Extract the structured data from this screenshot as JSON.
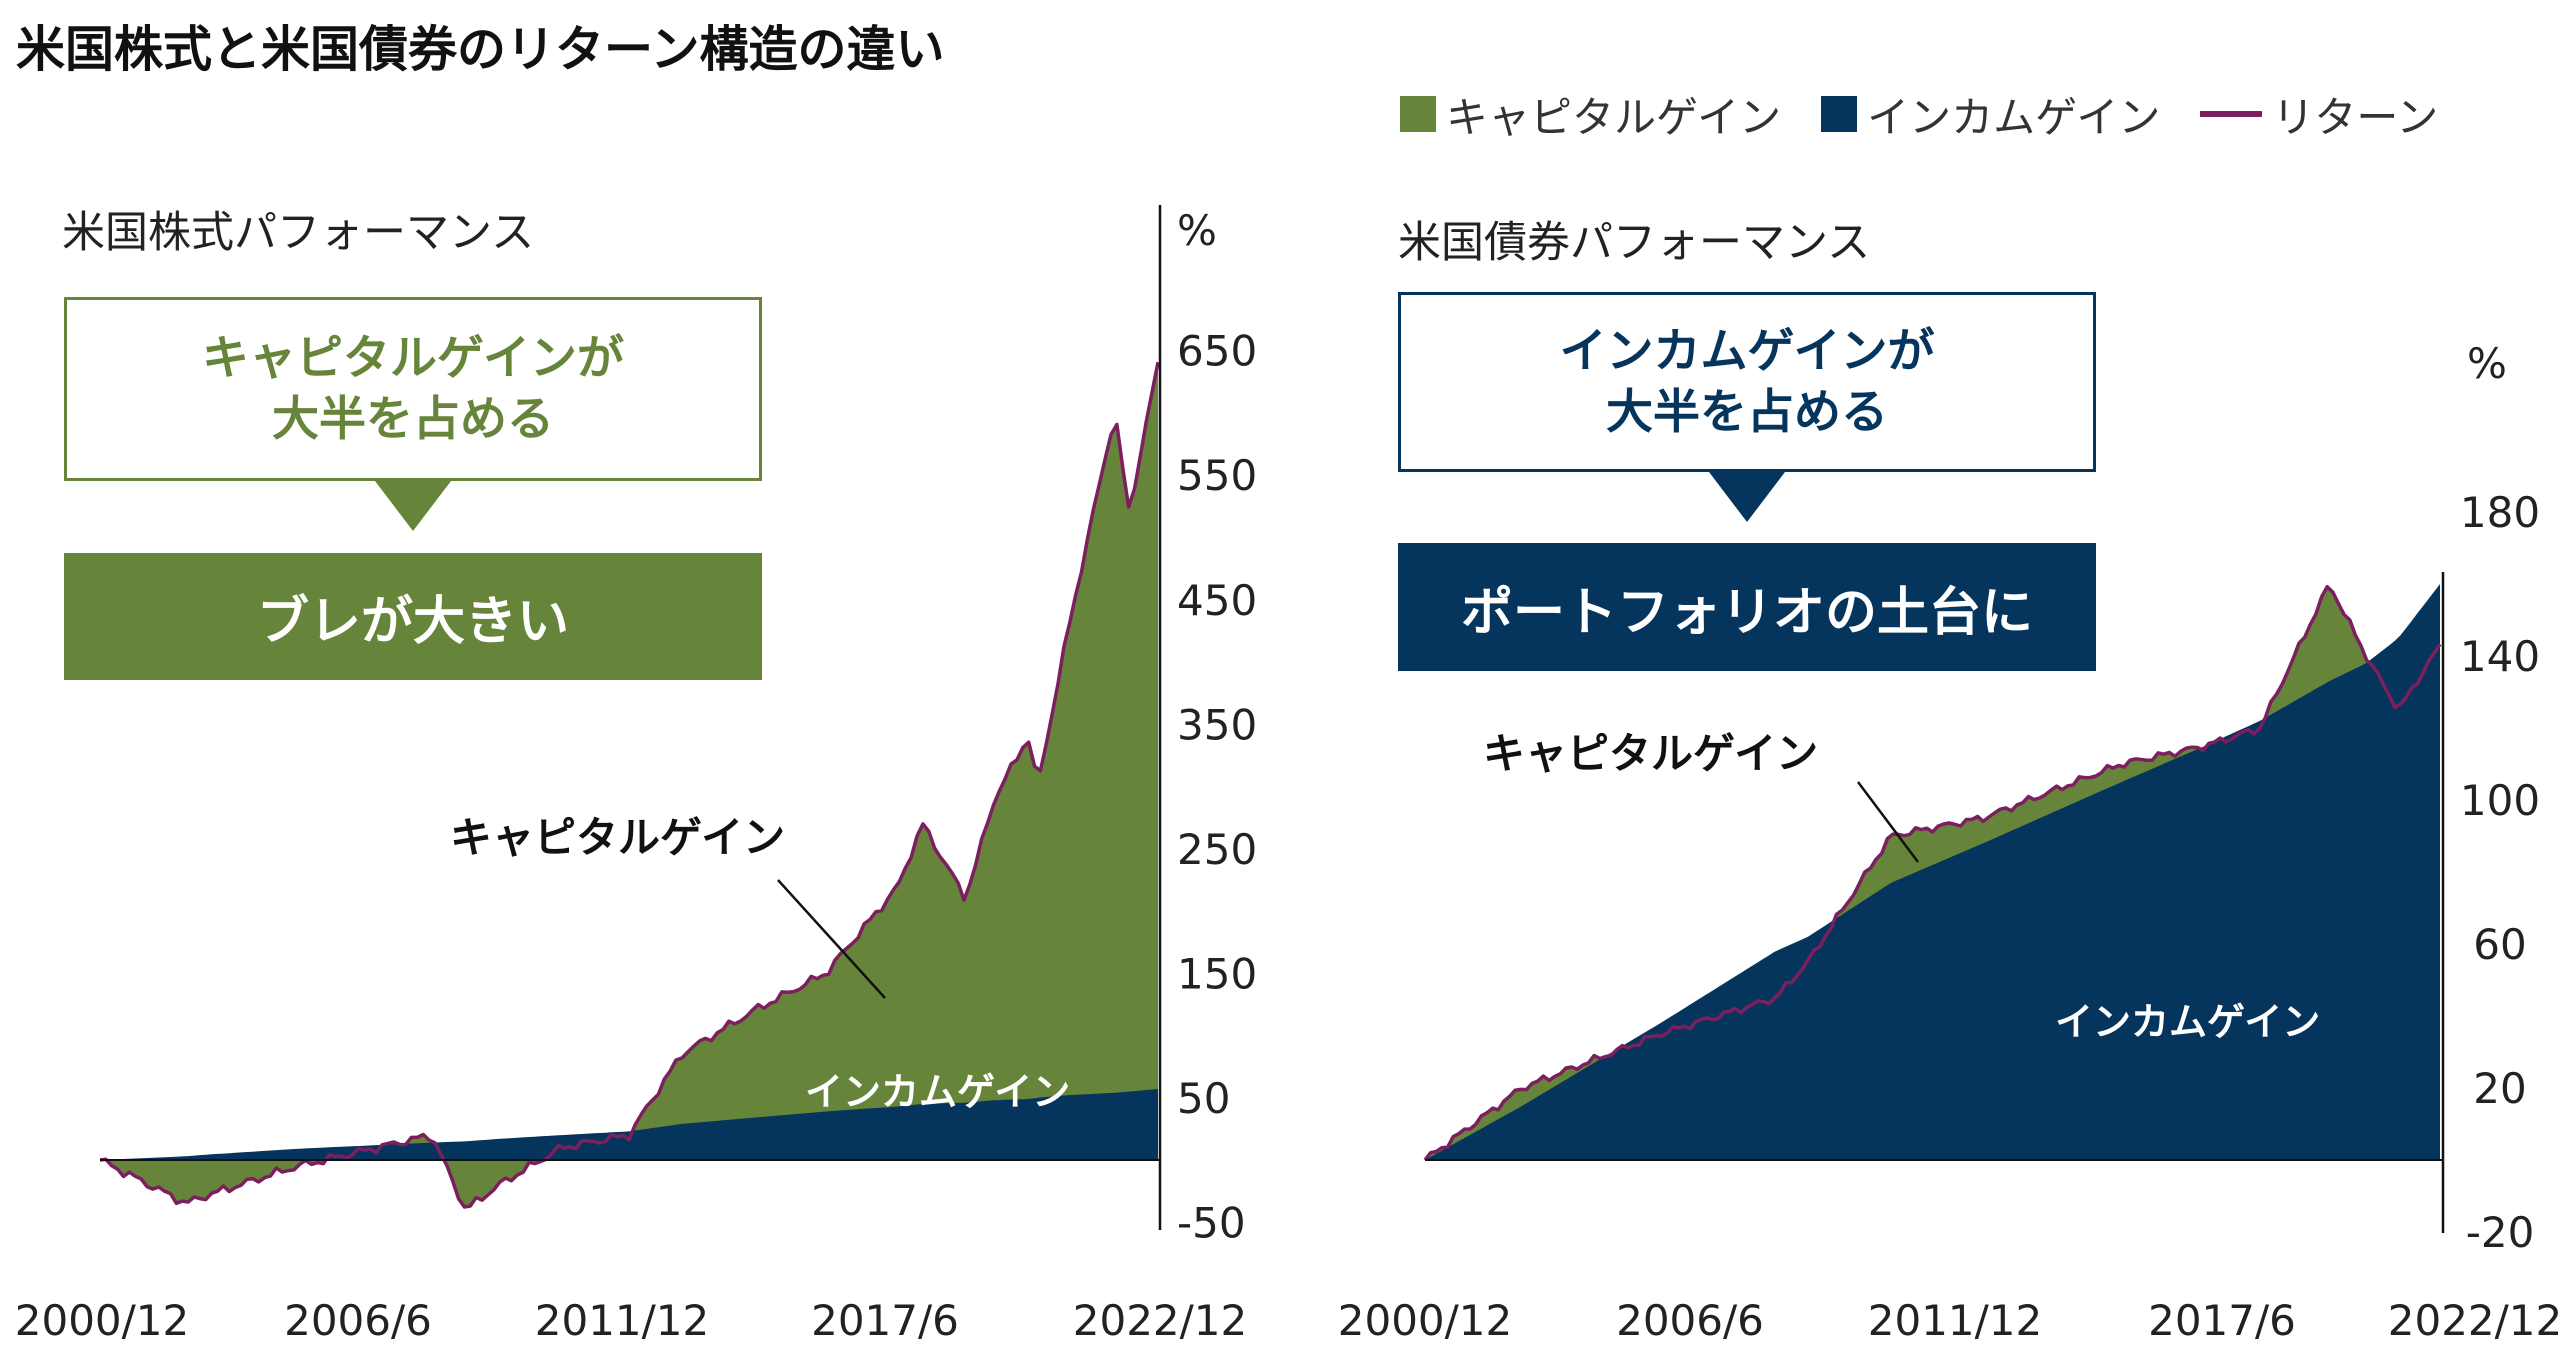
{
  "title": "米国株式と米国債券のリターン構造の違い",
  "legend": {
    "capital": "キャピタルゲイン",
    "income": "インカムゲイン",
    "ret": "リターン"
  },
  "colors": {
    "capital": "#66853a",
    "income": "#05355c",
    "return": "#7b1f5f"
  },
  "stocks": {
    "panel_title": "米国株式パフォーマンス",
    "callout_line1": "キャピタルゲインが",
    "callout_line2": "大半を占める",
    "banner": "ブレが大きい",
    "capital_label": "キャピタルゲイン",
    "income_label": "インカムゲイン"
  },
  "bonds": {
    "panel_title": "米国債券パフォーマンス",
    "callout_line1": "インカムゲインが",
    "callout_line2": "大半を占める",
    "banner": "ポートフォリオの土台に",
    "capital_label": "キャピタルゲイン",
    "income_label": "インカムゲイン"
  },
  "chart_data": [
    {
      "type": "area",
      "title": "米国株式パフォーマンス",
      "ylabel": "%",
      "ylim": [
        -50,
        700
      ],
      "yticks": [
        "650",
        "550",
        "450",
        "350",
        "250",
        "150",
        "50",
        "-50"
      ],
      "yticks_values": [
        650,
        550,
        450,
        350,
        250,
        150,
        50,
        -50
      ],
      "xticks": [
        "2000/12",
        "2006/6",
        "2011/12",
        "2017/6",
        "2022/12"
      ],
      "x": [
        2000.9,
        2002.7,
        2003.0,
        2005.0,
        2007.8,
        2008.5,
        2009.2,
        2010.5,
        2011.9,
        2013.0,
        2014.5,
        2016.0,
        2017.5,
        2018.0,
        2018.9,
        2019.5,
        2020.2,
        2020.4,
        2021.0,
        2022.0,
        2022.3,
        2022.9
      ],
      "series": [
        {
          "name": "インカムゲイン",
          "values": [
            0,
            3,
            4,
            9,
            14,
            15,
            17,
            20,
            23,
            29,
            34,
            39,
            43,
            45,
            46,
            48,
            49,
            50,
            52,
            54,
            55,
            57
          ]
        },
        {
          "name": "リターン",
          "values": [
            0,
            -35,
            -30,
            -5,
            20,
            -40,
            -20,
            10,
            20,
            85,
            120,
            150,
            220,
            270,
            210,
            290,
            340,
            300,
            420,
            600,
            520,
            640
          ]
        }
      ]
    },
    {
      "type": "area",
      "title": "米国債券パフォーマンス",
      "ylabel": "%",
      "ylim": [
        -20,
        190
      ],
      "yticks": [
        "180",
        "140",
        "100",
        "60",
        "20",
        "-20"
      ],
      "yticks_values": [
        180,
        140,
        100,
        60,
        20,
        -20
      ],
      "xticks": [
        "2000/12",
        "2006/6",
        "2011/12",
        "2017/6",
        "2022/12"
      ],
      "x": [
        2000.9,
        2003.0,
        2006.0,
        2008.5,
        2009.2,
        2011.0,
        2013.0,
        2016.0,
        2017.8,
        2019.0,
        2020.5,
        2021.3,
        2022.0,
        2022.9
      ],
      "series": [
        {
          "name": "インカムゲイン",
          "values": [
            0,
            15,
            38,
            58,
            62,
            77,
            88,
            105,
            115,
            122,
            133,
            138,
            145,
            160
          ]
        },
        {
          "name": "リターン",
          "values": [
            0,
            20,
            35,
            45,
            55,
            90,
            95,
            110,
            115,
            120,
            160,
            140,
            125,
            143
          ]
        }
      ]
    }
  ]
}
